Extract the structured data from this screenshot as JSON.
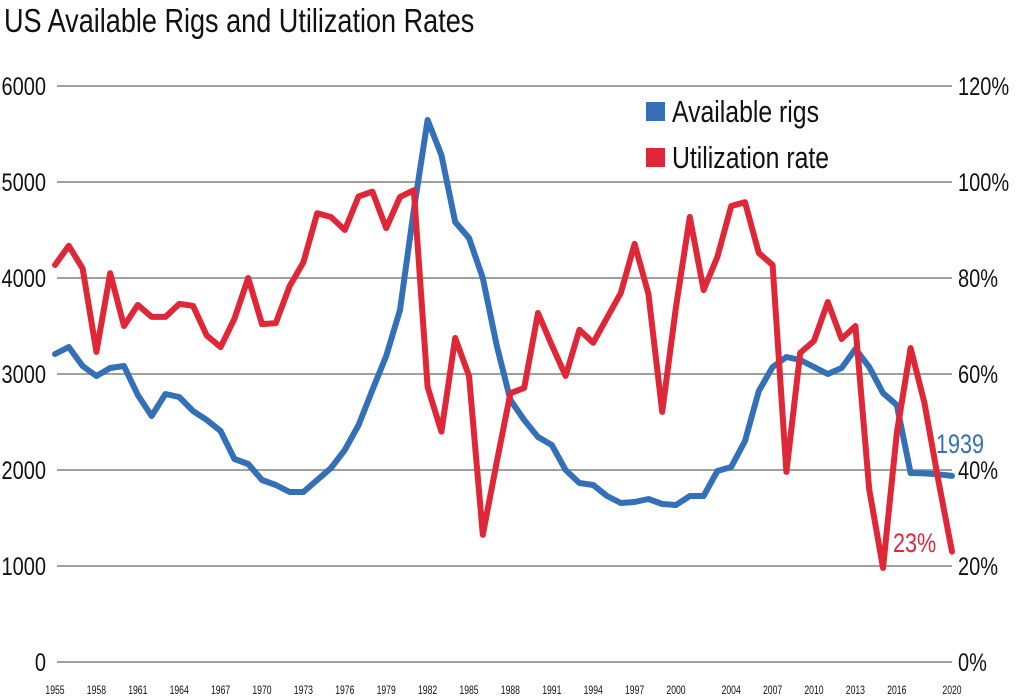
{
  "chart_data": {
    "type": "line",
    "title": "US Available Rigs and Utilization Rates",
    "x": [
      1955,
      1956,
      1957,
      1958,
      1959,
      1960,
      1961,
      1962,
      1963,
      1964,
      1965,
      1966,
      1967,
      1968,
      1969,
      1970,
      1971,
      1972,
      1973,
      1974,
      1975,
      1976,
      1977,
      1978,
      1979,
      1980,
      1981,
      1982,
      1983,
      1984,
      1985,
      1986,
      1987,
      1988,
      1989,
      1990,
      1991,
      1992,
      1993,
      1994,
      1995,
      1996,
      1997,
      1998,
      1999,
      2000,
      2001,
      2002,
      2003,
      2004,
      2005,
      2006,
      2007,
      2008,
      2009,
      2010,
      2011,
      2012,
      2013,
      2014,
      2015,
      2016,
      2017,
      2018,
      2019,
      2020
    ],
    "x_tick_labels": [
      "1955",
      "1958",
      "1961",
      "1964",
      "1967",
      "1970",
      "1973",
      "1976",
      "1979",
      "1982",
      "1985",
      "1988",
      "1991",
      "1994",
      "1997",
      "2000",
      "2004",
      "2007",
      "2010",
      "2013",
      "2016",
      "2020"
    ],
    "y_left": {
      "range": [
        0,
        6000
      ],
      "ticks": [
        "0",
        "1000",
        "2000",
        "3000",
        "4000",
        "5000",
        "6000"
      ]
    },
    "y_right": {
      "range": [
        0,
        120
      ],
      "ticks": [
        "0%",
        "20%",
        "40%",
        "60%",
        "80%",
        "100%",
        "120%"
      ]
    },
    "grid": true,
    "legend": "top-right",
    "series": [
      {
        "name": "Available   rigs",
        "axis": "left",
        "color": "#3370b7",
        "values": [
          3208,
          3281,
          3083,
          2979,
          3062,
          3083,
          2781,
          2562,
          2792,
          2760,
          2615,
          2521,
          2406,
          2115,
          2062,
          1896,
          1844,
          1771,
          1771,
          1896,
          2021,
          2208,
          2469,
          2833,
          3187,
          3667,
          4708,
          5646,
          5281,
          4583,
          4417,
          4000,
          3302,
          2729,
          2521,
          2344,
          2260,
          2000,
          1865,
          1844,
          1729,
          1656,
          1667,
          1698,
          1646,
          1635,
          1729,
          1729,
          1990,
          2031,
          2302,
          2823,
          3073,
          3177,
          3146,
          3073,
          3000,
          3062,
          3260,
          3073,
          2802,
          2677,
          1969,
          1965,
          1955,
          1939
        ]
      },
      {
        "name": "Utilization rate",
        "axis": "right",
        "color": "#e02737",
        "values": [
          82.7,
          86.7,
          82,
          64.6,
          81,
          70,
          74.4,
          71.9,
          71.9,
          74.6,
          74.2,
          68,
          65.6,
          71.5,
          80,
          70.4,
          70.6,
          78.3,
          83.3,
          93.5,
          92.7,
          90,
          97,
          98,
          90.4,
          96.9,
          98.3,
          57.3,
          48,
          67.5,
          59.6,
          26.5,
          41.5,
          56,
          57.1,
          72.7,
          66,
          59.6,
          69.2,
          66.5,
          71.7,
          76.9,
          87.1,
          76.7,
          52.1,
          74,
          92.7,
          77.5,
          84.4,
          95,
          95.8,
          85.2,
          82.7,
          39.6,
          64.4,
          66.9,
          75,
          67.3,
          70,
          36,
          19.6,
          47.7,
          65.4,
          54,
          38,
          23
        ]
      }
    ],
    "annotations": [
      "1939",
      "23%"
    ]
  }
}
